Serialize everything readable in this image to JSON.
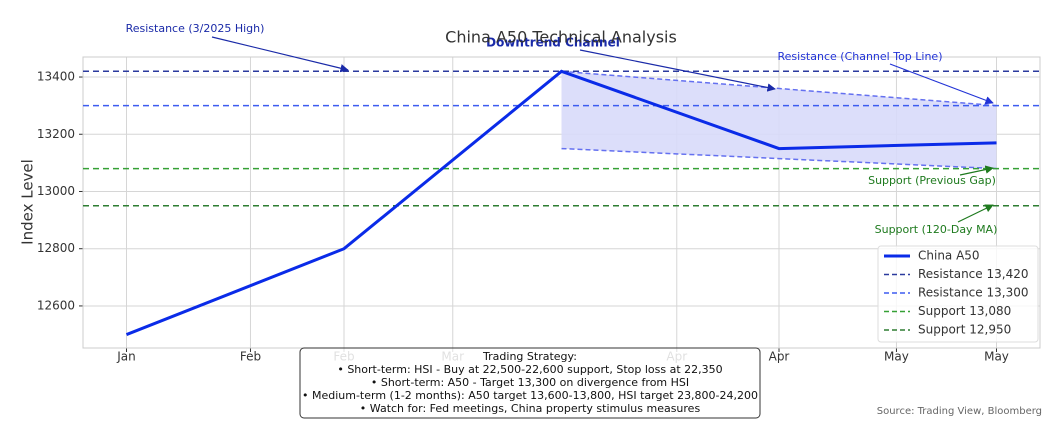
{
  "chart_data": {
    "type": "line",
    "title": "China A50 Technical Analysis",
    "y_label": "Index Level",
    "x": [
      0,
      1,
      2,
      3,
      4
    ],
    "xlim": [
      -0.2,
      4.2
    ],
    "xticks": [
      {
        "value": 0,
        "label": "Jan"
      },
      {
        "value": 0.57,
        "label": "Feb"
      },
      {
        "value": 1,
        "label": "Feb"
      },
      {
        "value": 1.5,
        "label": "Mar"
      },
      {
        "value": 2.53,
        "label": "Apr"
      },
      {
        "value": 3,
        "label": "Apr"
      },
      {
        "value": 3.54,
        "label": "May"
      },
      {
        "value": 4,
        "label": "May"
      }
    ],
    "ylim": [
      12453,
      13470
    ],
    "yticks": [
      12600,
      12800,
      13000,
      13200,
      13400
    ],
    "grid": true,
    "series": [
      {
        "name": "China A50",
        "color": "#0a2be8",
        "values": [
          12500,
          12800,
          13420,
          13150,
          13170
        ]
      }
    ],
    "levels": [
      {
        "name": "Resistance 13,420",
        "value": 13420,
        "color": "#2b3a9e"
      },
      {
        "name": "Resistance 13,300",
        "value": 13300,
        "color": "#3d5cf0"
      },
      {
        "name": "Support 13,080",
        "value": 13080,
        "color": "#35a035"
      },
      {
        "name": "Support 12,950",
        "value": 12950,
        "color": "#2e7d32"
      }
    ],
    "channel": {
      "x": [
        2,
        4
      ],
      "upper": [
        13420,
        13300
      ],
      "lower": [
        13150,
        13080
      ],
      "color": "#6470f0",
      "fill": "#d8daf9"
    },
    "annotations": [
      {
        "text": "Resistance (3/2025 High)",
        "color": "#1a2aa8"
      },
      {
        "text": "Downtrend Channel",
        "color": "#1a2aa8"
      },
      {
        "text": "Resistance (Channel Top Line)",
        "color": "#2233d6"
      },
      {
        "text": "Support (Previous Gap)",
        "color": "#1e7a1e"
      },
      {
        "text": "Support (120-Day MA)",
        "color": "#1e7a1e"
      }
    ],
    "legend": "lower right",
    "strategy": {
      "title": "Trading Strategy:",
      "lines": [
        "• Short-term: HSI - Buy at 22,500-22,600 support, Stop loss at 22,350",
        "• Short-term: A50 - Target 13,300 on divergence from HSI",
        "• Medium-term (1-2 months): A50 target 13,600-13,800, HSI target 23,800-24,200",
        "• Watch for: Fed meetings, China property stimulus measures"
      ]
    },
    "source": "Source: Trading View, Bloomberg"
  }
}
